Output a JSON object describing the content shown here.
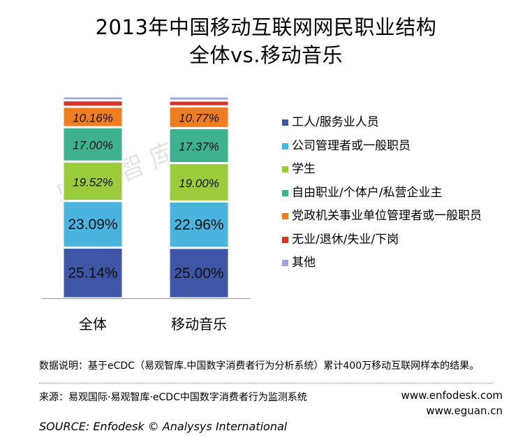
{
  "title": {
    "line1": "2013年中国移动互联网网民职业结构",
    "line2": "全体vs.移动音乐"
  },
  "watermark": "易观智库",
  "chart_data": {
    "type": "bar",
    "stacked": true,
    "categories": [
      "全体",
      "移动音乐"
    ],
    "ylim": [
      0,
      100
    ],
    "series": [
      {
        "name": "工人/服务业人员",
        "color": "#3f56a7",
        "values": [
          25.14,
          25.0
        ],
        "labels": [
          "25.14%",
          "25.00%"
        ]
      },
      {
        "name": "公司管理者或一般职员",
        "color": "#4bb4de",
        "values": [
          23.09,
          22.96
        ],
        "labels": [
          "23.09%",
          "22.96%"
        ]
      },
      {
        "name": "学生",
        "color": "#9bcc3c",
        "values": [
          19.52,
          19.0
        ],
        "labels": [
          "19.52%",
          "19.00%"
        ]
      },
      {
        "name": "自由职业/个体户/私营企业主",
        "color": "#3eb18e",
        "values": [
          17.0,
          17.37
        ],
        "labels": [
          "17.00%",
          "17.37%"
        ]
      },
      {
        "name": "党政机关事业单位管理者或一般职员",
        "color": "#ef7d22",
        "values": [
          10.16,
          10.77
        ],
        "labels": [
          "10.16%",
          "10.77%"
        ]
      },
      {
        "name": "无业/退休/失业/下岗",
        "color": "#d9342b",
        "values": [
          3.15,
          2.82
        ],
        "labels": [
          "",
          ""
        ]
      },
      {
        "name": "其他",
        "color": "#9ea5e0",
        "values": [
          1.94,
          2.08
        ],
        "labels": [
          "",
          ""
        ]
      }
    ]
  },
  "note": "数据说明：基于eCDC（易观智库.中国数字消费者行为分析系统）累计400万移动互联网样本的结果。",
  "source": "来源：易观国际·易观智库·eCDC中国数字消费者行为监测系统",
  "urls": [
    "www.enfodesk.com",
    "www.eguan.cn"
  ],
  "source_en": "SOURCE: Enfodesk © Analysys International"
}
